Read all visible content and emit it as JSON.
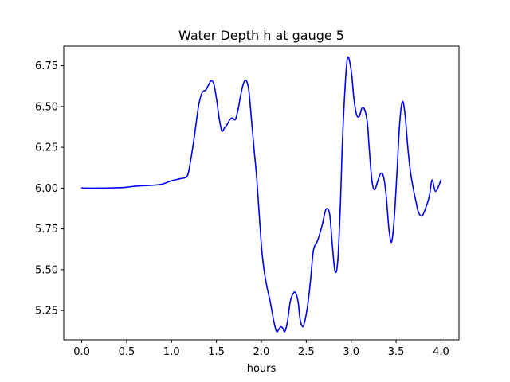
{
  "chart_data": {
    "type": "line",
    "title": "Water Depth h at gauge 5",
    "xlabel": "hours",
    "ylabel": "",
    "xlim": [
      -0.2,
      4.2
    ],
    "ylim": [
      5.07,
      6.87
    ],
    "xticks": [
      0.0,
      0.5,
      1.0,
      1.5,
      2.0,
      2.5,
      3.0,
      3.5,
      4.0
    ],
    "xtick_labels": [
      "0.0",
      "0.5",
      "1.0",
      "1.5",
      "2.0",
      "2.5",
      "3.0",
      "3.5",
      "4.0"
    ],
    "yticks": [
      5.25,
      5.5,
      5.75,
      6.0,
      6.25,
      6.5,
      6.75
    ],
    "ytick_labels": [
      "5.25",
      "5.50",
      "5.75",
      "6.00",
      "6.25",
      "6.50",
      "6.75"
    ],
    "grid": false,
    "series": [
      {
        "color": "#0000ff",
        "x": [
          0.0,
          0.2,
          0.4,
          0.5,
          0.6,
          0.8,
          0.9,
          1.0,
          1.1,
          1.17,
          1.2,
          1.25,
          1.3,
          1.34,
          1.38,
          1.41,
          1.44,
          1.47,
          1.5,
          1.53,
          1.56,
          1.59,
          1.62,
          1.65,
          1.68,
          1.71,
          1.74,
          1.77,
          1.8,
          1.83,
          1.86,
          1.89,
          1.92,
          1.95,
          2.0,
          2.03,
          2.06,
          2.1,
          2.14,
          2.17,
          2.2,
          2.22,
          2.24,
          2.26,
          2.29,
          2.32,
          2.35,
          2.38,
          2.41,
          2.43,
          2.46,
          2.49,
          2.52,
          2.55,
          2.58,
          2.62,
          2.65,
          2.68,
          2.72,
          2.76,
          2.79,
          2.82,
          2.85,
          2.88,
          2.9,
          2.93,
          2.96,
          3.0,
          3.03,
          3.06,
          3.09,
          3.12,
          3.15,
          3.18,
          3.2,
          3.23,
          3.26,
          3.3,
          3.33,
          3.36,
          3.39,
          3.42,
          3.45,
          3.48,
          3.51,
          3.54,
          3.57,
          3.6,
          3.63,
          3.66,
          3.69,
          3.72,
          3.75,
          3.79,
          3.83,
          3.87,
          3.9,
          3.94,
          4.0
        ],
        "y": [
          6.0,
          6.0,
          6.002,
          6.005,
          6.012,
          6.018,
          6.025,
          6.045,
          6.058,
          6.07,
          6.13,
          6.3,
          6.5,
          6.585,
          6.6,
          6.63,
          6.658,
          6.64,
          6.55,
          6.43,
          6.35,
          6.37,
          6.39,
          6.42,
          6.43,
          6.42,
          6.48,
          6.57,
          6.64,
          6.66,
          6.6,
          6.42,
          6.23,
          6.05,
          5.65,
          5.5,
          5.4,
          5.3,
          5.18,
          5.12,
          5.14,
          5.15,
          5.14,
          5.12,
          5.18,
          5.3,
          5.35,
          5.36,
          5.3,
          5.2,
          5.15,
          5.2,
          5.3,
          5.45,
          5.62,
          5.67,
          5.72,
          5.78,
          5.87,
          5.84,
          5.65,
          5.49,
          5.55,
          5.9,
          6.25,
          6.6,
          6.8,
          6.72,
          6.55,
          6.45,
          6.44,
          6.49,
          6.48,
          6.4,
          6.25,
          6.05,
          5.99,
          6.05,
          6.09,
          6.07,
          5.95,
          5.75,
          5.67,
          5.82,
          6.1,
          6.4,
          6.53,
          6.45,
          6.25,
          6.1,
          6.0,
          5.92,
          5.85,
          5.83,
          5.88,
          5.95,
          6.05,
          5.98,
          6.05
        ]
      }
    ]
  }
}
